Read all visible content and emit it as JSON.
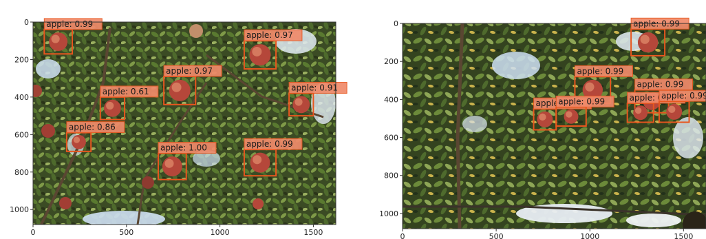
{
  "figure": {
    "colors": {
      "box_stroke": "#e8561e",
      "label_fill": "#f08a6a",
      "label_stroke": "#e8561e",
      "axis": "#333333",
      "sky": "#cfe0f4",
      "foliage_dark": "#2f3a1e",
      "foliage_mid": "#4e6a2c",
      "foliage_light": "#8aa455",
      "yellow_leaf": "#c9b24c",
      "apple_red": "#b5473a",
      "apple_light": "#e08a6b",
      "branch": "#5a4632"
    },
    "label_prefix": "apple"
  },
  "panels": [
    {
      "xticks": [
        0,
        500,
        1000,
        1500
      ],
      "yticks": [
        0,
        200,
        400,
        600,
        800,
        1000
      ],
      "xlim": [
        0,
        1620
      ],
      "ylim": [
        1080,
        0
      ],
      "detections": [
        {
          "label": "apple: 0.99",
          "score": 0.99,
          "box": [
            60,
            40,
            210,
            170
          ]
        },
        {
          "label": "apple: 0.97",
          "score": 0.97,
          "box": [
            1130,
            100,
            1300,
            250
          ]
        },
        {
          "label": "apple: 0.97",
          "score": 0.97,
          "box": [
            700,
            290,
            870,
            440
          ]
        },
        {
          "label": "apple: 0.61",
          "score": 0.61,
          "box": [
            360,
            400,
            490,
            520
          ]
        },
        {
          "label": "apple: 0.91",
          "score": 0.91,
          "box": [
            1370,
            380,
            1500,
            500
          ]
        },
        {
          "label": "apple: 0.86",
          "score": 0.86,
          "box": [
            180,
            590,
            310,
            690
          ]
        },
        {
          "label": "apple: 0.99",
          "score": 0.99,
          "box": [
            1130,
            680,
            1300,
            820
          ]
        },
        {
          "label": "apple: 1.00",
          "score": 1.0,
          "box": [
            670,
            700,
            820,
            840
          ]
        }
      ]
    },
    {
      "xticks": [
        0,
        500,
        1000,
        1500
      ],
      "yticks": [
        0,
        200,
        400,
        600,
        800,
        1000
      ],
      "xlim": [
        0,
        1620
      ],
      "ylim": [
        1080,
        0
      ],
      "detections": [
        {
          "label": "apple: 0.99",
          "score": 0.99,
          "box": [
            1220,
            30,
            1400,
            170
          ]
        },
        {
          "label": "apple: 0.99",
          "score": 0.99,
          "box": [
            920,
            280,
            1110,
            420
          ]
        },
        {
          "label": "apple: 0.99",
          "score": 0.99,
          "box": [
            1240,
            350,
            1420,
            470
          ]
        },
        {
          "label": "apple: 0.78",
          "score": 0.78,
          "box": [
            1200,
            420,
            1340,
            520
          ]
        },
        {
          "label": "apple: 0.99",
          "score": 0.99,
          "box": [
            1370,
            410,
            1530,
            520
          ]
        },
        {
          "label": "apple: 0.65",
          "score": 0.65,
          "box": [
            700,
            450,
            820,
            560
          ]
        },
        {
          "label": "apple: 0.99",
          "score": 0.99,
          "box": [
            820,
            440,
            980,
            540
          ]
        }
      ]
    }
  ]
}
